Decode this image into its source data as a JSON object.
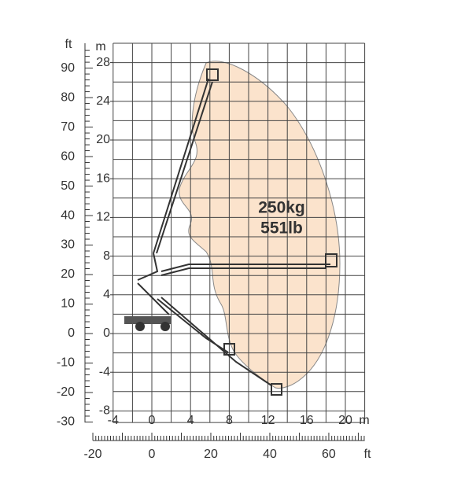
{
  "axes": {
    "left_ft": {
      "unit": "ft",
      "ticks": [
        90,
        80,
        70,
        60,
        50,
        40,
        30,
        20,
        10,
        0,
        -10,
        -20,
        -30
      ]
    },
    "left_m": {
      "unit": "m",
      "ticks": [
        28,
        24,
        20,
        16,
        12,
        8,
        4,
        0,
        -4,
        -8
      ]
    },
    "bottom_m": {
      "unit": "m",
      "ticks": [
        -4,
        0,
        4,
        8,
        12,
        16,
        20
      ]
    },
    "bottom_ft": {
      "unit": "ft",
      "ticks": [
        -20,
        0,
        20,
        40,
        60
      ]
    }
  },
  "load": [
    "250kg",
    "551lb"
  ]
}
